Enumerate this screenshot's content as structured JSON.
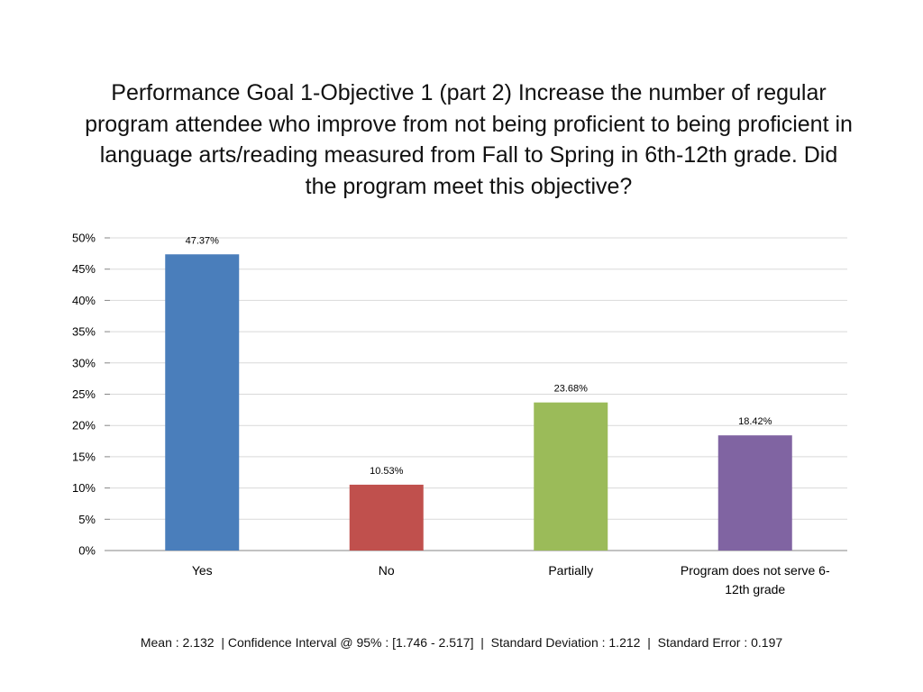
{
  "chart_data": {
    "type": "bar",
    "title": "Performance Goal 1-Objective 1 (part 2) Increase the number of regular program attendee who improve from not being proficient to being proficient in language arts/reading measured from Fall to Spring in 6th-12th grade. Did the program meet this objective?",
    "categories": [
      "Yes",
      "No",
      "Partially",
      "Program does not serve 6-12th grade"
    ],
    "category_label_lines": [
      [
        "Yes"
      ],
      [
        "No"
      ],
      [
        "Partially"
      ],
      [
        "Program does not serve 6-",
        "12th grade"
      ]
    ],
    "values": [
      47.37,
      10.53,
      23.68,
      18.42
    ],
    "data_labels": [
      "47.37%",
      "10.53%",
      "23.68%",
      "18.42%"
    ],
    "colors": [
      "#4a7ebb",
      "#c0504d",
      "#9bbb59",
      "#8064a2"
    ],
    "ylim": [
      0,
      50
    ],
    "yticks": [
      0,
      5,
      10,
      15,
      20,
      25,
      30,
      35,
      40,
      45,
      50
    ],
    "ytick_labels": [
      "0%",
      "5%",
      "10%",
      "15%",
      "20%",
      "25%",
      "30%",
      "35%",
      "40%",
      "45%",
      "50%"
    ],
    "grid": true,
    "legend": "none",
    "xlabel": "",
    "ylabel": ""
  },
  "stats_line": "Mean : 2.132  | Confidence Interval @ 95% : [1.746 - 2.517]  |  Standard Deviation : 1.212  |  Standard Error : 0.197"
}
